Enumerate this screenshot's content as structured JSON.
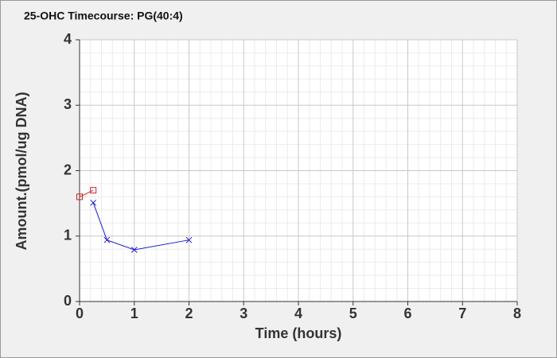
{
  "chart_data": {
    "type": "line",
    "title": "25-OHC Timecourse: PG(40:4)",
    "x_label": "Time (hours)",
    "y_label": "Amount.(pmol/ug DNA)",
    "series": [
      {
        "color": "#cc2222",
        "marker": "square",
        "x": [
          0,
          0.25
        ],
        "values": [
          1.6,
          1.7
        ]
      },
      {
        "color": "#1a1acc",
        "marker": "cross",
        "x": [
          0.25,
          0.5,
          1,
          2
        ],
        "values": [
          1.51,
          0.94,
          0.79,
          0.94
        ]
      }
    ],
    "xlim": [
      0,
      8
    ],
    "xticks": [
      0,
      1,
      2,
      3,
      4,
      5,
      6,
      7,
      8
    ],
    "ylim": [
      0,
      4
    ],
    "yticks": [
      0,
      1,
      2,
      3,
      4
    ],
    "grid": true
  }
}
